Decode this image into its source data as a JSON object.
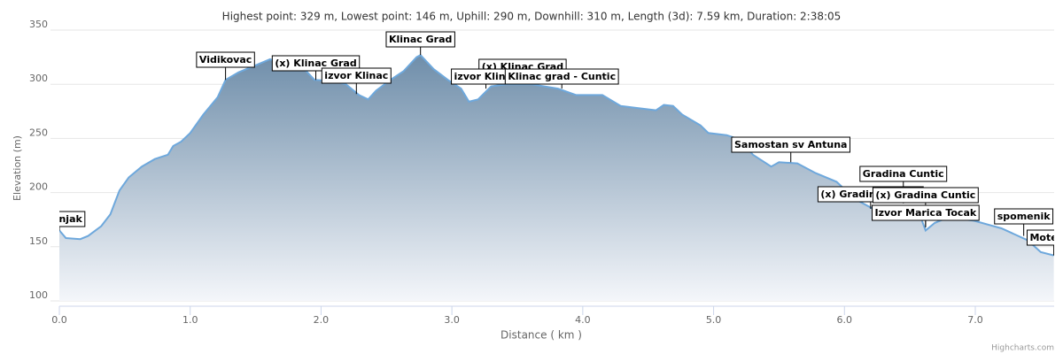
{
  "chart_data": {
    "type": "area",
    "title": "Highest point: 329 m, Lowest point: 146 m, Uphill: 290 m, Downhill: 310 m, Length (3d): 7.59 km, Duration: 2:38:05",
    "x_label": "Distance ( km )",
    "y_label": "Elevation (m)",
    "credits": "Highcharts.com",
    "x": [
      0,
      0.05,
      0.16,
      0.22,
      0.32,
      0.39,
      0.46,
      0.53,
      0.63,
      0.73,
      0.83,
      0.87,
      0.93,
      1.0,
      1.1,
      1.21,
      1.27,
      1.37,
      1.51,
      1.61,
      1.71,
      1.85,
      1.95,
      2.09,
      2.19,
      2.29,
      2.36,
      2.42,
      2.53,
      2.63,
      2.73,
      2.76,
      2.86,
      2.97,
      3.07,
      3.13,
      3.2,
      3.3,
      3.41,
      3.61,
      3.81,
      3.95,
      4.15,
      4.29,
      4.42,
      4.56,
      4.62,
      4.69,
      4.76,
      4.9,
      4.96,
      5.1,
      5.2,
      5.3,
      5.44,
      5.5,
      5.64,
      5.78,
      5.94,
      6.08,
      6.25,
      6.45,
      6.59,
      6.62,
      6.69,
      6.79,
      6.99,
      7.2,
      7.4,
      7.5,
      7.6
    ],
    "series": [
      {
        "name": "Elevation",
        "color": "#6ea8dc",
        "values": [
          165,
          158,
          157,
          160,
          169,
          180,
          202,
          214,
          224,
          231,
          235,
          243,
          247,
          255,
          272,
          288,
          304,
          311,
          318,
          323,
          319,
          317,
          304,
          303,
          300,
          290,
          286,
          294,
          304,
          312,
          325,
          327,
          314,
          304,
          296,
          284,
          286,
          298,
          300,
          300,
          296,
          290,
          290,
          280,
          278,
          276,
          281,
          280,
          272,
          262,
          255,
          253,
          249,
          235,
          224,
          228,
          227,
          218,
          210,
          194,
          183,
          182,
          175,
          165,
          172,
          177,
          174,
          167,
          156,
          145,
          142
        ]
      }
    ],
    "annotations": [
      {
        "text": "Tjesnjak",
        "x": 0,
        "y": 165
      },
      {
        "text": "Vidikovac",
        "x": 1.27,
        "y": 304
      },
      {
        "text": "(x) Klinac Grad",
        "x": 1.96,
        "y": 304
      },
      {
        "text": "izvor Klinac",
        "x": 2.27,
        "y": 291
      },
      {
        "text": "Klinac Grad",
        "x": 2.76,
        "y": 327
      },
      {
        "text": "(x) Klinac Grad",
        "x": 3.54,
        "y": 302
      },
      {
        "text": "izvor Klinac",
        "x": 3.26,
        "y": 296
      },
      {
        "text": "Klinac grad - Cuntic",
        "x": 3.84,
        "y": 296
      },
      {
        "text": "Samostan sv Antuna",
        "x": 5.59,
        "y": 228
      },
      {
        "text": "Gradina Cuntic",
        "x": 6.45,
        "y": 190
      },
      {
        "text": "(x) Gradina Cuntic",
        "x": 6.2,
        "y": 185
      },
      {
        "text": "(x) Gradina Cuntic",
        "x": 6.62,
        "y": 168
      },
      {
        "text": "Izvor Marica Tocak",
        "x": 6.62,
        "y": 168
      },
      {
        "text": "spomenik",
        "x": 7.37,
        "y": 160
      },
      {
        "text": "Motel Ze",
        "x": 7.6,
        "y": 142
      }
    ],
    "xlim": [
      0,
      7.6
    ],
    "ylim": [
      100,
      350
    ],
    "xticks": [
      {
        "value": 0,
        "label": "0.0"
      },
      {
        "value": 1,
        "label": "1.0"
      },
      {
        "value": 2,
        "label": "2.0"
      },
      {
        "value": 3,
        "label": "3.0"
      },
      {
        "value": 4,
        "label": "4.0"
      },
      {
        "value": 5,
        "label": "5.0"
      },
      {
        "value": 6,
        "label": "6.0"
      },
      {
        "value": 7,
        "label": "7.0"
      }
    ],
    "yticks": [
      100,
      150,
      200,
      250,
      300,
      350
    ],
    "grid": true
  }
}
